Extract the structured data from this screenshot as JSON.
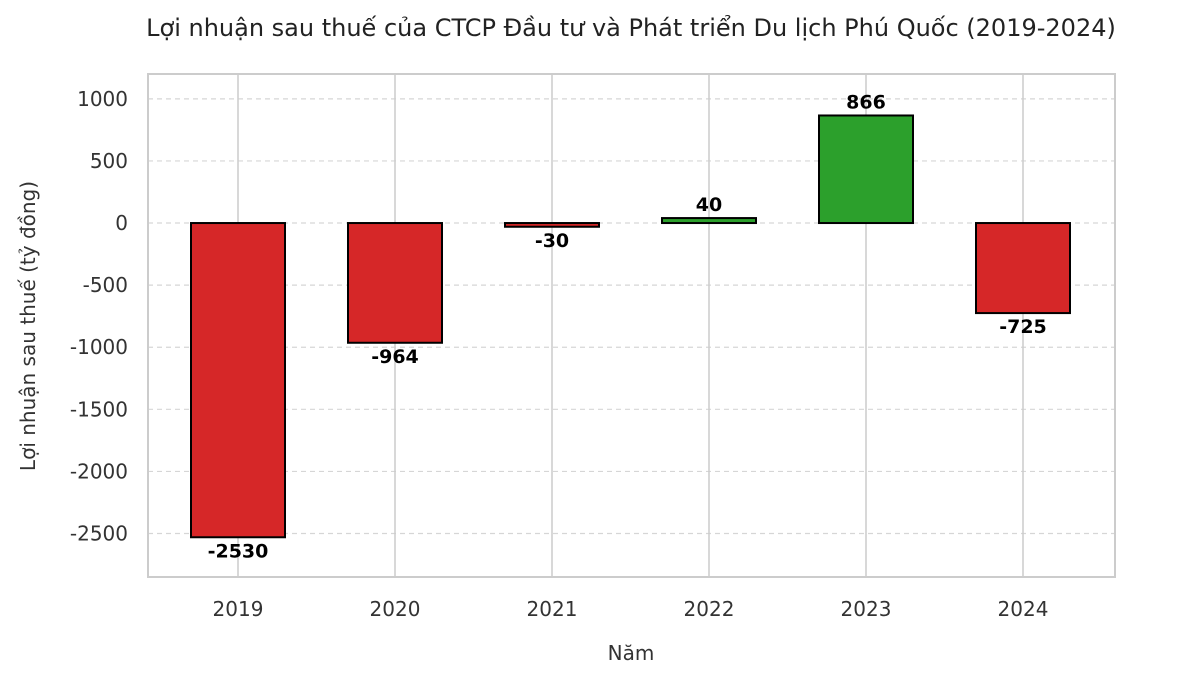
{
  "chart_data": {
    "type": "bar",
    "title": "Lợi nhuận sau thuế của CTCP Đầu tư và Phát triển Du lịch Phú Quốc (2019-2024)",
    "xlabel": "Năm",
    "ylabel": "Lợi nhuận sau thuế (tỷ đồng)",
    "categories": [
      "2019",
      "2020",
      "2021",
      "2022",
      "2023",
      "2024"
    ],
    "values": [
      -2530,
      -964,
      -30,
      40,
      866,
      -725
    ],
    "data_labels": [
      "-2530",
      "-964",
      "-30",
      "40",
      "866",
      "-725"
    ],
    "ylim": [
      -2850,
      1200
    ],
    "yticks": [
      1000,
      500,
      0,
      -500,
      -1000,
      -1500,
      -2000,
      -2500
    ],
    "ytick_labels": [
      "1000",
      "500",
      "0",
      "-500",
      "-1000",
      "-1500",
      "-2000",
      "-2500"
    ],
    "grid": true,
    "colors": {
      "positive": "#2ca02c",
      "negative": "#d62728",
      "edge": "#000000",
      "grid": "#cccccc",
      "axis": "#cccccc",
      "text": "#333333"
    }
  }
}
